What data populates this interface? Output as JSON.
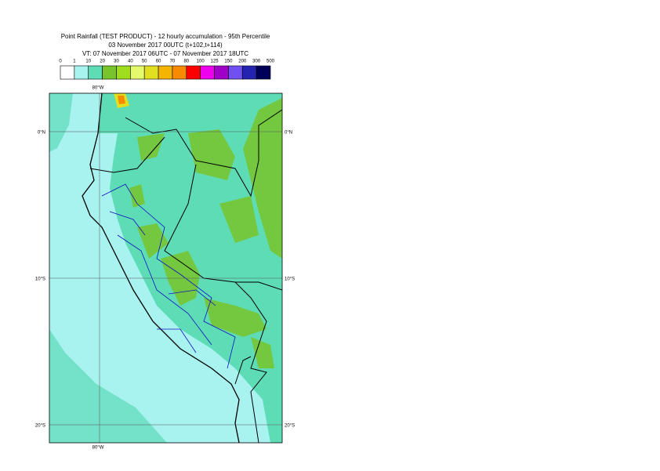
{
  "header": {
    "title_lines": [
      "Point Rainfall (TEST PRODUCT) - 12 hourly accumulation - 95th Percentile",
      "03 November 2017 00UTC (t+102,t+114)",
      "VT: 07 November 2017 06UTC - 07 November 2017 18UTC"
    ]
  },
  "legend": {
    "thresholds": [
      0,
      1,
      10,
      20,
      30,
      40,
      50,
      60,
      70,
      80,
      100,
      125,
      150,
      200,
      300,
      500
    ],
    "colors": [
      "#ffffff",
      "#a8f2f0",
      "#5edcb6",
      "#78c42c",
      "#9ede1c",
      "#e4fa6c",
      "#e2de20",
      "#f4b400",
      "#f88a00",
      "#ff0000",
      "#ee00ee",
      "#a000c8",
      "#7050f0",
      "#2424b0",
      "#000058"
    ]
  },
  "map": {
    "lon_labels": {
      "top": "80°W",
      "bottom": "80°W"
    },
    "lat_labels": [
      {
        "left": "0°N",
        "right": "0°N"
      },
      {
        "left": "10°S",
        "right": "10°S"
      },
      {
        "left": "20°S",
        "right": "20°S"
      }
    ]
  }
}
